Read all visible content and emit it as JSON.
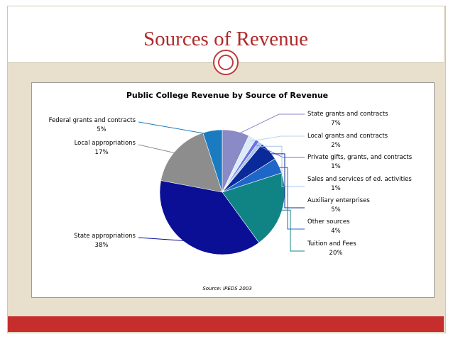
{
  "slide": {
    "title": "Sources of Revenue",
    "accent_color": "#b02a2a",
    "footer_color": "#c62d2d",
    "background_color": "#e8dfcc"
  },
  "chart_data": {
    "type": "pie",
    "title": "Public College Revenue by Source of Revenue",
    "source": "Source: IPEDS 2003",
    "slices": [
      {
        "label": "State grants and contracts",
        "value": 7,
        "value_label": "7%",
        "color": "#8a8ac6"
      },
      {
        "label": "Local grants and contracts",
        "value": 2,
        "value_label": "2%",
        "color": "#d9ecf8"
      },
      {
        "label": "Private gifts, grants, and contracts",
        "value": 1,
        "value_label": "1%",
        "color": "#6f6fe6"
      },
      {
        "label": "Sales and services of ed. activities",
        "value": 1,
        "value_label": "1%",
        "color": "#a7c7ee"
      },
      {
        "label": "Auxiliary enterprises",
        "value": 5,
        "value_label": "5%",
        "color": "#0b2a99"
      },
      {
        "label": "Other sources",
        "value": 4,
        "value_label": "4%",
        "color": "#1e66c8"
      },
      {
        "label": "Tuition and Fees",
        "value": 20,
        "value_label": "20%",
        "color": "#108485"
      },
      {
        "label": "State appropriations",
        "value": 38,
        "value_label": "38%",
        "color": "#0a0f96"
      },
      {
        "label": "Local appropriations",
        "value": 17,
        "value_label": "17%",
        "color": "#8d8d8d"
      },
      {
        "label": "Federal grants and contracts",
        "value": 5,
        "value_label": "5%",
        "color": "#1b7bc0"
      }
    ],
    "start_angle_deg": 0,
    "direction": "clockwise",
    "legend_placement": "leader-lines"
  }
}
